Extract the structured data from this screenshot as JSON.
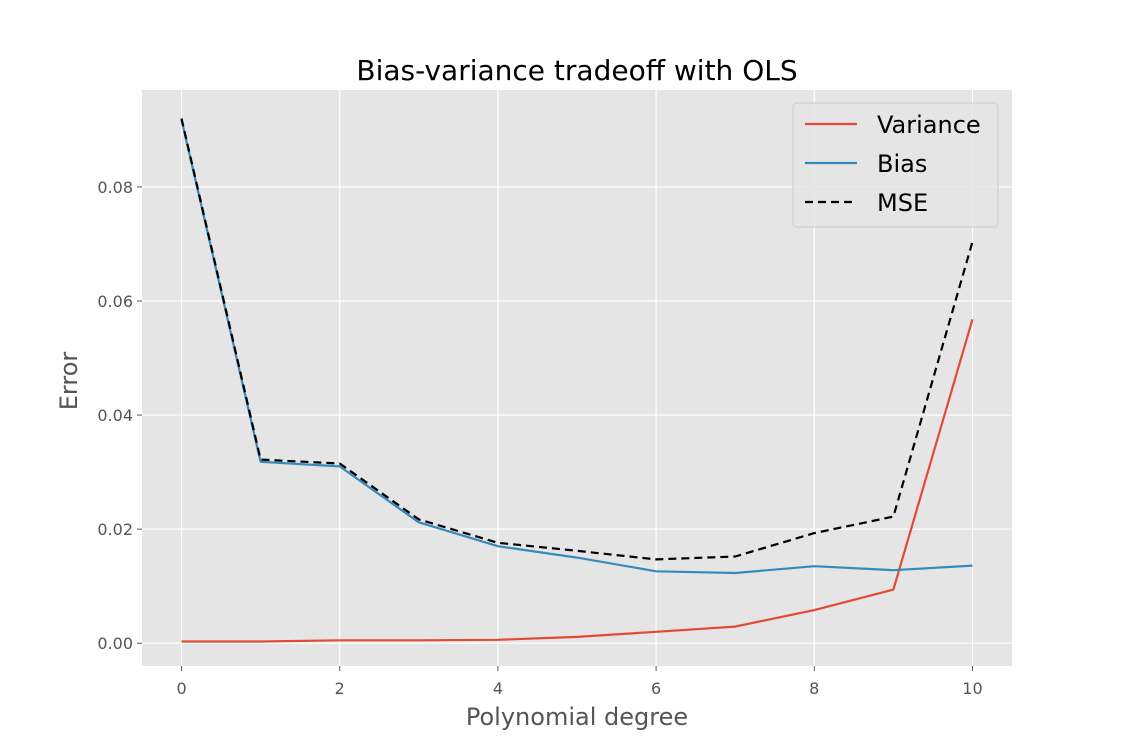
{
  "chart_data": {
    "type": "line",
    "title": "Bias-variance tradeoff with OLS",
    "xlabel": "Polynomial degree",
    "ylabel": "Error",
    "xlim": [
      -0.5,
      10.5
    ],
    "ylim": [
      -0.004,
      0.097
    ],
    "xticks": [
      0,
      2,
      4,
      6,
      8,
      10
    ],
    "yticks": [
      0.0,
      0.02,
      0.04,
      0.06,
      0.08
    ],
    "xtick_labels": [
      "0",
      "2",
      "4",
      "6",
      "8",
      "10"
    ],
    "ytick_labels": [
      "0.00",
      "0.02",
      "0.04",
      "0.06",
      "0.08"
    ],
    "grid": true,
    "legend_position": "top-right",
    "x": [
      0,
      1,
      2,
      3,
      4,
      5,
      6,
      7,
      8,
      9,
      10
    ],
    "series": [
      {
        "name": "Variance",
        "color": "#E24A33",
        "style": "solid",
        "values": [
          0.0003,
          0.0003,
          0.0005,
          0.0005,
          0.0006,
          0.0011,
          0.002,
          0.0029,
          0.0058,
          0.0094,
          0.0568
        ]
      },
      {
        "name": "Bias",
        "color": "#348ABD",
        "style": "solid",
        "values": [
          0.0918,
          0.0318,
          0.031,
          0.0212,
          0.017,
          0.015,
          0.0126,
          0.0123,
          0.0135,
          0.0128,
          0.0136
        ]
      },
      {
        "name": "MSE",
        "color": "#000000",
        "style": "dashed",
        "values": [
          0.092,
          0.0322,
          0.0315,
          0.0217,
          0.0176,
          0.0162,
          0.0147,
          0.0152,
          0.0193,
          0.0222,
          0.0704
        ]
      }
    ]
  }
}
